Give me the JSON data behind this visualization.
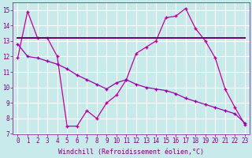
{
  "xlabel": "Windchill (Refroidissement éolien,°C)",
  "x_values": [
    0,
    1,
    2,
    3,
    4,
    5,
    6,
    7,
    8,
    9,
    10,
    11,
    12,
    13,
    14,
    15,
    16,
    17,
    18,
    19,
    20,
    21,
    22,
    23
  ],
  "series": [
    {
      "y": [
        11.9,
        14.9,
        13.2,
        13.2,
        12.0,
        7.5,
        7.5,
        8.5,
        8.0,
        9.0,
        9.5,
        10.5,
        12.2,
        12.6,
        13.0,
        14.5,
        14.6,
        15.1,
        13.8,
        13.0,
        11.9,
        9.9,
        8.7,
        7.6
      ],
      "color": "#c0009a",
      "linewidth": 0.9,
      "linestyle": "-",
      "marker": "+"
    },
    {
      "y": [
        13.2,
        13.2,
        13.2,
        13.2,
        13.2,
        13.2,
        13.2,
        13.2,
        13.2,
        13.2,
        13.2,
        13.2,
        13.2,
        13.2,
        13.2,
        13.2,
        13.2,
        13.2,
        13.2,
        13.2,
        13.2,
        13.2,
        13.2,
        13.2
      ],
      "color": "#660066",
      "linewidth": 1.4,
      "linestyle": "-",
      "marker": null
    },
    {
      "y": [
        12.8,
        12.0,
        11.9,
        11.7,
        11.5,
        11.2,
        10.8,
        10.5,
        10.2,
        9.9,
        10.3,
        10.5,
        10.2,
        10.0,
        9.9,
        9.8,
        9.6,
        9.3,
        9.1,
        8.9,
        8.7,
        8.5,
        8.3,
        7.7
      ],
      "color": "#9900aa",
      "linewidth": 0.9,
      "linestyle": "-",
      "marker": "+"
    }
  ],
  "ylim": [
    7,
    15.5
  ],
  "yticks": [
    7,
    8,
    9,
    10,
    11,
    12,
    13,
    14,
    15
  ],
  "xlim": [
    -0.5,
    23.5
  ],
  "bg_color": "#c8eaea",
  "grid_color": "#ffffff",
  "tick_color": "#800080",
  "label_color": "#800080",
  "tick_fontsize": 5.5,
  "xlabel_fontsize": 6.0
}
